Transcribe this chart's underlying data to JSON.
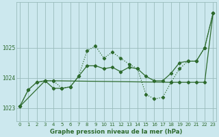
{
  "xlabel": "Graphe pression niveau de la mer (hPa)",
  "bg_color": "#cce8ee",
  "line_color": "#2d6a2d",
  "grid_color": "#99bbbb",
  "ylim": [
    1022.55,
    1026.5
  ],
  "xlim": [
    -0.4,
    23.4
  ],
  "yticks": [
    1023,
    1024,
    1025
  ],
  "xticks": [
    0,
    1,
    2,
    3,
    4,
    5,
    6,
    7,
    8,
    9,
    10,
    11,
    12,
    13,
    14,
    15,
    16,
    17,
    18,
    19,
    20,
    21,
    22,
    23
  ],
  "line1_x": [
    0,
    1,
    2,
    3,
    4,
    5,
    6,
    7,
    8,
    9,
    10,
    11,
    12,
    13,
    14,
    15,
    16,
    17,
    18,
    19,
    20,
    21,
    22,
    23
  ],
  "line1_y": [
    1023.05,
    1023.6,
    1023.85,
    1023.9,
    1023.9,
    1023.65,
    1023.7,
    1024.05,
    1024.9,
    1025.05,
    1024.65,
    1024.85,
    1024.65,
    1024.45,
    1024.3,
    1023.45,
    1023.3,
    1023.35,
    1023.85,
    1024.3,
    1024.55,
    1024.55,
    1025.0,
    1026.15
  ],
  "line1_style": ":",
  "line2_x": [
    0,
    1,
    2,
    3,
    4,
    5,
    6,
    7,
    8,
    9,
    10,
    11,
    12,
    13,
    14,
    15,
    16,
    17,
    18,
    19,
    20,
    21,
    22,
    23
  ],
  "line2_y": [
    1023.05,
    1023.6,
    1023.85,
    1023.9,
    1023.65,
    1023.65,
    1023.7,
    1024.05,
    1024.4,
    1024.4,
    1024.3,
    1024.35,
    1024.2,
    1024.35,
    1024.3,
    1024.05,
    1023.9,
    1023.9,
    1024.15,
    1024.5,
    1024.55,
    1024.55,
    1025.0,
    1026.15
  ],
  "line2_style": "-",
  "line3_x": [
    0,
    3,
    4,
    18,
    19,
    20,
    21,
    22,
    23
  ],
  "line3_y": [
    1023.05,
    1023.9,
    1023.9,
    1023.85,
    1023.85,
    1023.85,
    1023.85,
    1023.85,
    1026.15
  ],
  "line3_style": "-"
}
